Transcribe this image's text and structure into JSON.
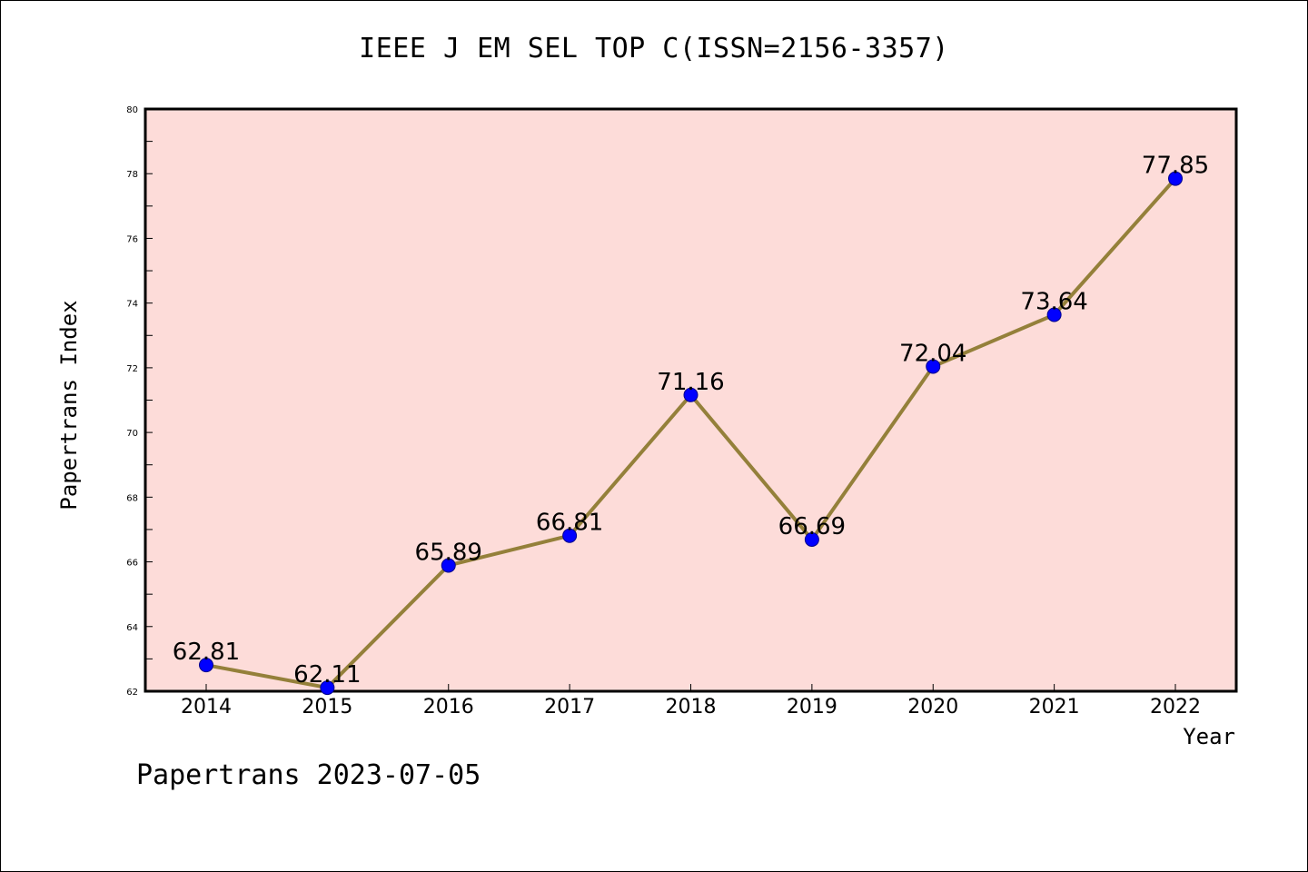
{
  "chart_data": {
    "type": "line",
    "title": "IEEE J EM SEL TOP C(ISSN=2156-3357)",
    "xlabel": "Year",
    "ylabel": "Papertrans Index",
    "categories": [
      "2014",
      "2015",
      "2016",
      "2017",
      "2018",
      "2019",
      "2020",
      "2021",
      "2022"
    ],
    "values": [
      62.81,
      62.11,
      65.89,
      66.81,
      71.16,
      66.69,
      72.04,
      73.64,
      77.85
    ],
    "data_labels": [
      "62.81",
      "62.11",
      "65.89",
      "66.81",
      "71.16",
      "66.69",
      "72.04",
      "73.64",
      "77.85"
    ],
    "ylim": [
      62,
      80
    ],
    "yticks": [
      "62",
      "64",
      "66",
      "68",
      "70",
      "72",
      "74",
      "76",
      "78",
      "80"
    ],
    "grid": false,
    "colors": {
      "line": "#94803a",
      "marker": "#0000ff",
      "plot_background": "#fddcd9"
    }
  },
  "footer": "Papertrans 2023-07-05"
}
